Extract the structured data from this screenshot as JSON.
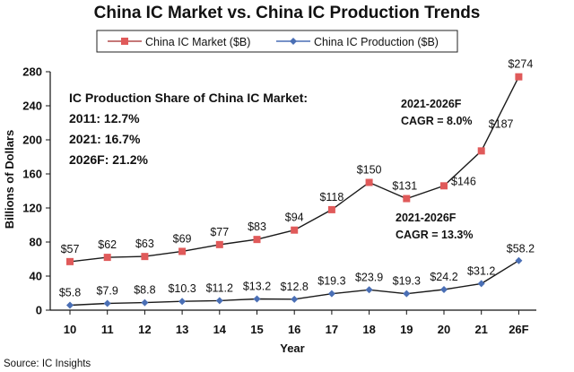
{
  "chart_data": {
    "type": "line",
    "title": "China IC Market vs. China IC Production Trends",
    "xlabel": "Year",
    "ylabel": "Billions of Dollars",
    "ylim": [
      0,
      280
    ],
    "yticks": [
      0,
      40,
      80,
      120,
      160,
      200,
      240,
      280
    ],
    "categories": [
      "10",
      "11",
      "12",
      "13",
      "14",
      "15",
      "16",
      "17",
      "18",
      "19",
      "20",
      "21",
      "26F"
    ],
    "series": [
      {
        "name": "China IC Market ($B)",
        "color": "#e05a5a",
        "marker": "square",
        "values": [
          57,
          62,
          63,
          69,
          77,
          83,
          94,
          118,
          150,
          131,
          146,
          187,
          274
        ],
        "labels": [
          "$57",
          "$62",
          "$63",
          "$69",
          "$77",
          "$83",
          "$94",
          "$118",
          "$150",
          "$131",
          "$146",
          "$187",
          "$274"
        ]
      },
      {
        "name": "China IC Production ($B)",
        "color": "#4a6fb5",
        "marker": "diamond",
        "values": [
          5.8,
          7.9,
          8.8,
          10.3,
          11.2,
          13.2,
          12.8,
          19.3,
          23.9,
          19.3,
          24.2,
          31.2,
          58.2
        ],
        "labels": [
          "$5.8",
          "$7.9",
          "$8.8",
          "$10.3",
          "$11.2",
          "$13.2",
          "$12.8",
          "$19.3",
          "$23.9",
          "$19.3",
          "$24.2",
          "$31.2",
          "$58.2"
        ]
      }
    ],
    "legend": "top-center",
    "grid": false,
    "annotations": {
      "share_title": "IC Production Share of China IC Market:",
      "share_lines": [
        "2011: 12.7%",
        "2021: 16.7%",
        "2026F: 21.2%"
      ],
      "market_cagr_period": "2021-2026F",
      "market_cagr": "CAGR = 8.0%",
      "production_cagr_period": "2021-2026F",
      "production_cagr": "CAGR = 13.3%"
    },
    "source": "Source: IC Insights"
  }
}
